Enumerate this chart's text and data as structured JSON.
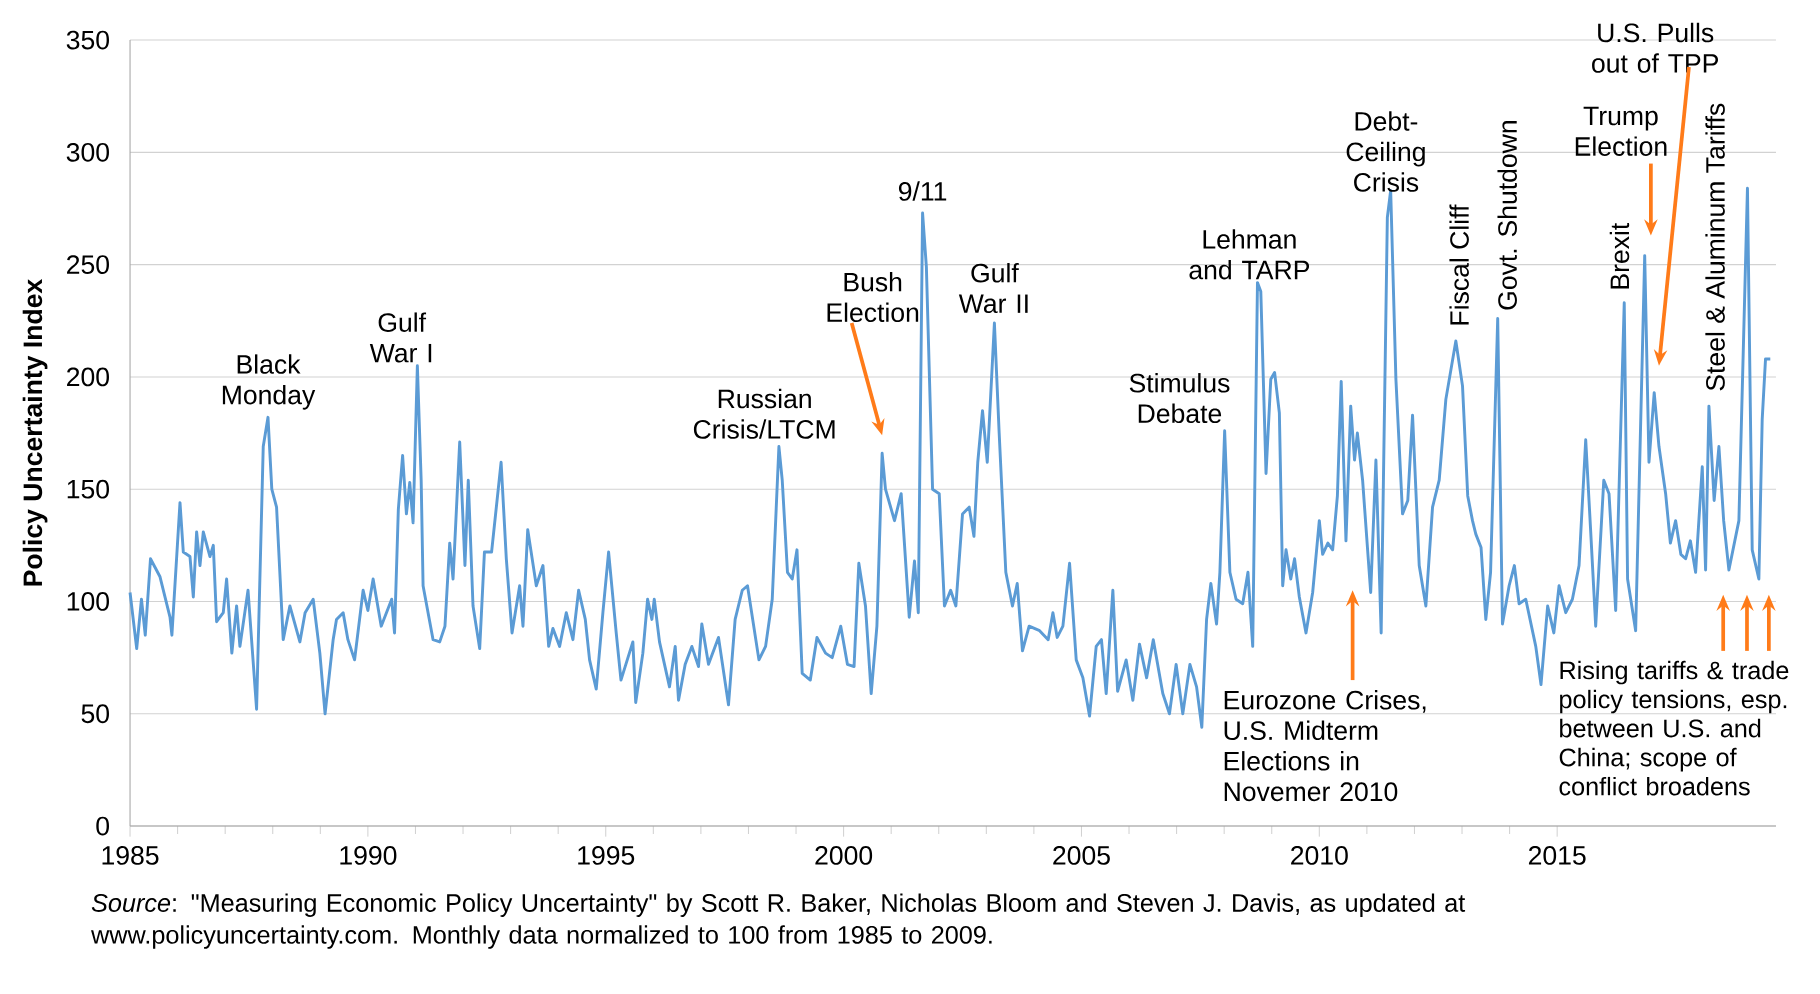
{
  "chart_data": {
    "type": "line",
    "ylabel": "Policy Uncertainty Index",
    "color": "#5b9bd5",
    "grid": "y",
    "xlim": [
      1985,
      2019.6
    ],
    "xticks": [
      1985,
      1990,
      1995,
      2000,
      2005,
      2010,
      2015
    ],
    "ylim": [
      0,
      350
    ],
    "yticks": [
      0,
      50,
      100,
      150,
      200,
      250,
      300,
      350
    ],
    "x": [
      1985.0,
      1985.14,
      1985.24,
      1985.32,
      1985.43,
      1985.63,
      1985.84,
      1985.88,
      1986.05,
      1986.12,
      1986.26,
      1986.33,
      1986.4,
      1986.47,
      1986.54,
      1986.68,
      1986.75,
      1986.82,
      1986.96,
      1987.03,
      1987.14,
      1987.24,
      1987.31,
      1987.48,
      1987.66,
      1987.8,
      1987.9,
      1987.98,
      1988.08,
      1988.22,
      1988.36,
      1988.57,
      1988.68,
      1988.85,
      1988.99,
      1989.1,
      1989.27,
      1989.34,
      1989.48,
      1989.58,
      1989.72,
      1989.9,
      1990.0,
      1990.11,
      1990.28,
      1990.5,
      1990.56,
      1990.64,
      1990.73,
      1990.81,
      1990.88,
      1990.95,
      1991.04,
      1991.12,
      1991.16,
      1991.37,
      1991.51,
      1991.62,
      1991.72,
      1991.79,
      1991.93,
      1992.04,
      1992.11,
      1992.21,
      1992.35,
      1992.45,
      1992.6,
      1992.8,
      1992.91,
      1993.03,
      1993.19,
      1993.26,
      1993.36,
      1993.54,
      1993.68,
      1993.8,
      1993.89,
      1994.03,
      1994.17,
      1994.31,
      1994.43,
      1994.57,
      1994.66,
      1994.8,
      1994.94,
      1995.06,
      1995.22,
      1995.32,
      1995.57,
      1995.63,
      1995.78,
      1995.88,
      1995.97,
      1996.02,
      1996.13,
      1996.34,
      1996.46,
      1996.53,
      1996.67,
      1996.81,
      1996.95,
      1997.02,
      1997.16,
      1997.37,
      1997.58,
      1997.72,
      1997.87,
      1997.98,
      1998.22,
      1998.36,
      1998.5,
      1998.64,
      1998.71,
      1998.82,
      1998.92,
      1999.02,
      1999.13,
      1999.3,
      1999.44,
      1999.62,
      1999.76,
      1999.94,
      2000.08,
      2000.22,
      2000.32,
      2000.46,
      2000.58,
      2000.7,
      2000.81,
      2000.88,
      2001.07,
      2001.21,
      2001.38,
      2001.49,
      2001.57,
      2001.66,
      2001.74,
      2001.87,
      2002.01,
      2002.12,
      2002.25,
      2002.36,
      2002.5,
      2002.64,
      2002.74,
      2002.82,
      2002.92,
      2003.02,
      2003.17,
      2003.27,
      2003.41,
      2003.55,
      2003.65,
      2003.76,
      2003.9,
      2004.12,
      2004.3,
      2004.4,
      2004.49,
      2004.61,
      2004.75,
      2004.89,
      2005.03,
      2005.17,
      2005.31,
      2005.42,
      2005.52,
      2005.66,
      2005.76,
      2005.94,
      2006.08,
      2006.22,
      2006.37,
      2006.51,
      2006.71,
      2006.85,
      2006.99,
      2007.13,
      2007.28,
      2007.42,
      2007.53,
      2007.63,
      2007.72,
      2007.84,
      2007.91,
      2008.01,
      2008.12,
      2008.25,
      2008.39,
      2008.5,
      2008.6,
      2008.7,
      2008.77,
      2008.88,
      2008.98,
      2009.06,
      2009.16,
      2009.23,
      2009.3,
      2009.4,
      2009.48,
      2009.58,
      2009.72,
      2009.86,
      2010.0,
      2010.07,
      2010.18,
      2010.28,
      2010.38,
      2010.46,
      2010.56,
      2010.66,
      2010.74,
      2010.8,
      2010.91,
      2011.08,
      2011.19,
      2011.3,
      2011.43,
      2011.5,
      2011.61,
      2011.75,
      2011.86,
      2011.96,
      2012.1,
      2012.24,
      2012.38,
      2012.52,
      2012.66,
      2012.87,
      2013.01,
      2013.12,
      2013.22,
      2013.29,
      2013.4,
      2013.5,
      2013.6,
      2013.75,
      2013.85,
      2013.99,
      2014.1,
      2014.2,
      2014.34,
      2014.55,
      2014.66,
      2014.8,
      2014.93,
      2015.04,
      2015.18,
      2015.32,
      2015.46,
      2015.6,
      2015.7,
      2015.81,
      2015.98,
      2016.09,
      2016.23,
      2016.41,
      2016.48,
      2016.65,
      2016.84,
      2016.93,
      2017.04,
      2017.14,
      2017.28,
      2017.38,
      2017.49,
      2017.6,
      2017.7,
      2017.8,
      2017.91,
      2018.05,
      2018.12,
      2018.19,
      2018.3,
      2018.4,
      2018.5,
      2018.61,
      2018.82,
      2019.0,
      2019.1,
      2019.24,
      2019.31,
      2019.38,
      2019.48
    ],
    "values": [
      104,
      79,
      101,
      85,
      119,
      111,
      93,
      85,
      144,
      122,
      120,
      102,
      131,
      116,
      131,
      120,
      125,
      91,
      95,
      110,
      77,
      98,
      80,
      105,
      52,
      169,
      182,
      150,
      142,
      83,
      98,
      82,
      95,
      101,
      77,
      50,
      83,
      92,
      95,
      83,
      74,
      105,
      96,
      110,
      89,
      101,
      86,
      141,
      165,
      139,
      153,
      135,
      205,
      154,
      107,
      83,
      82,
      89,
      126,
      110,
      171,
      116,
      154,
      98,
      79,
      122,
      122,
      162,
      119,
      86,
      107,
      89,
      132,
      107,
      116,
      80,
      88,
      80,
      95,
      83,
      105,
      92,
      74,
      61,
      95,
      122,
      86,
      65,
      82,
      55,
      77,
      101,
      92,
      101,
      82,
      62,
      80,
      56,
      72,
      80,
      71,
      90,
      72,
      84,
      54,
      92,
      105,
      107,
      74,
      80,
      101,
      169,
      154,
      113,
      110,
      123,
      68,
      65,
      84,
      77,
      75,
      89,
      72,
      71,
      117,
      98,
      59,
      89,
      166,
      150,
      136,
      148,
      93,
      118,
      95,
      273,
      249,
      150,
      148,
      98,
      105,
      98,
      139,
      142,
      129,
      162,
      185,
      162,
      224,
      175,
      113,
      98,
      108,
      78,
      89,
      87,
      83,
      95,
      84,
      89,
      117,
      74,
      66,
      49,
      80,
      83,
      59,
      105,
      60,
      74,
      56,
      81,
      66,
      83,
      59,
      50,
      72,
      50,
      72,
      62,
      44,
      92,
      108,
      90,
      113,
      176,
      113,
      101,
      99,
      113,
      80,
      242,
      238,
      157,
      199,
      202,
      184,
      107,
      123,
      110,
      119,
      102,
      86,
      104,
      136,
      121,
      126,
      123,
      147,
      198,
      127,
      187,
      163,
      175,
      154,
      104,
      163,
      86,
      271,
      283,
      199,
      139,
      145,
      183,
      116,
      98,
      142,
      154,
      190,
      216,
      196,
      147,
      136,
      130,
      124,
      92,
      113,
      226,
      90,
      107,
      116,
      99,
      101,
      80,
      63,
      98,
      86,
      107,
      95,
      101,
      116,
      172,
      133,
      89,
      154,
      148,
      96,
      233,
      110,
      87,
      254,
      162,
      193,
      169,
      148,
      126,
      136,
      121,
      119,
      127,
      113,
      160,
      114,
      187,
      145,
      169,
      136,
      114,
      136,
      284,
      123,
      110,
      181,
      208,
      208
    ],
    "annotations": [
      {
        "text": "Black Monday",
        "x": 1987.9,
        "y": 182
      },
      {
        "text": "Gulf War I",
        "x": 1991.04,
        "y": 205
      },
      {
        "text": "Russian Crisis/LTCM",
        "x": 1998.64,
        "y": 169
      },
      "Bush Election",
      {
        "text": "9/11",
        "x": 2001.66,
        "y": 273
      },
      {
        "text": "Gulf War II",
        "x": 2003.17,
        "y": 224
      },
      {
        "text": "Stimulus Debate",
        "x": 2008.01,
        "y": 176
      },
      {
        "text": "Lehman and TARP",
        "x": 2008.7,
        "y": 242
      },
      "Eurozone Crises, U.S. Midterm Elections in Novemer 2010",
      {
        "text": "Debt-Ceiling Crisis",
        "x": 2011.5,
        "y": 283
      },
      {
        "text": "Fiscal Cliff",
        "x": 2012.87,
        "y": 216
      },
      {
        "text": "Govt. Shutdown",
        "x": 2013.75,
        "y": 226
      },
      {
        "text": "Brexit",
        "x": 2016.41,
        "y": 233
      },
      "Trump Election",
      "U.S. Pulls out of TPP",
      {
        "text": "Steel & Aluminum Tariffs",
        "x": 2018.19,
        "y": 187
      },
      "Rising tariffs & trade policy tensions, esp. between U.S. and China; scope of conflict broadens",
      "*Source*: \"Measuring Economic Policy Uncertainty\" by Scott R. Baker, Nicholas Bloom and Steven J. Davis, as updated at www.policyuncertainty.com. Monthly data normalized to 100 from 1985 to 2009."
    ]
  }
}
